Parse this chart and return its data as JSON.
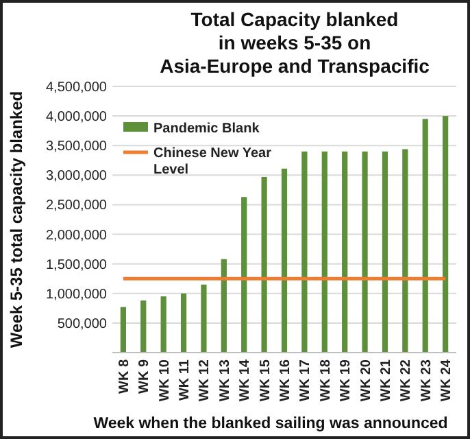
{
  "chart_data": {
    "type": "bar",
    "title": "Total Capacity blanked\nin weeks 5-35 on\nAsia-Europe and Transpacific",
    "xlabel": "Week when the blanked sailing was announced",
    "ylabel": "Week 5-35 total capacity blanked",
    "categories": [
      "WK 8",
      "WK 9",
      "WK 10",
      "WK 11",
      "WK 12",
      "WK 13",
      "WK 14",
      "WK 15",
      "WK 16",
      "WK 17",
      "WK 18",
      "WK 19",
      "WK 20",
      "WK 21",
      "WK 22",
      "WK 23",
      "WK 24"
    ],
    "series": [
      {
        "name": "Pandemic Blank",
        "color": "#5e8f3b",
        "values": [
          770000,
          880000,
          950000,
          1000000,
          1150000,
          1580000,
          2630000,
          2970000,
          3110000,
          3400000,
          3400000,
          3400000,
          3400000,
          3400000,
          3440000,
          3950000,
          4000000
        ]
      },
      {
        "name": "Chinese New Year Level",
        "type": "line",
        "color": "#ed7d31",
        "values": [
          1250000,
          1250000,
          1250000,
          1250000,
          1250000,
          1250000,
          1250000,
          1250000,
          1250000,
          1250000,
          1250000,
          1250000,
          1250000,
          1250000,
          1250000,
          1250000,
          1250000
        ]
      }
    ],
    "ylim": [
      0,
      4500000
    ],
    "yticks": [
      {
        "value": 0,
        "label": null
      },
      {
        "value": 500000,
        "label": "500,000"
      },
      {
        "value": 1000000,
        "label": "1,000,000"
      },
      {
        "value": 1500000,
        "label": "1,500,000"
      },
      {
        "value": 2000000,
        "label": "2,000,000"
      },
      {
        "value": 2500000,
        "label": "2,500,000"
      },
      {
        "value": 3000000,
        "label": "3,000,000"
      },
      {
        "value": 3500000,
        "label": "3,500,000"
      },
      {
        "value": 4000000,
        "label": "4,000,000"
      },
      {
        "value": 4500000,
        "label": "4,500,000"
      }
    ],
    "grid": "y",
    "legend": "top left",
    "marker": "none"
  }
}
